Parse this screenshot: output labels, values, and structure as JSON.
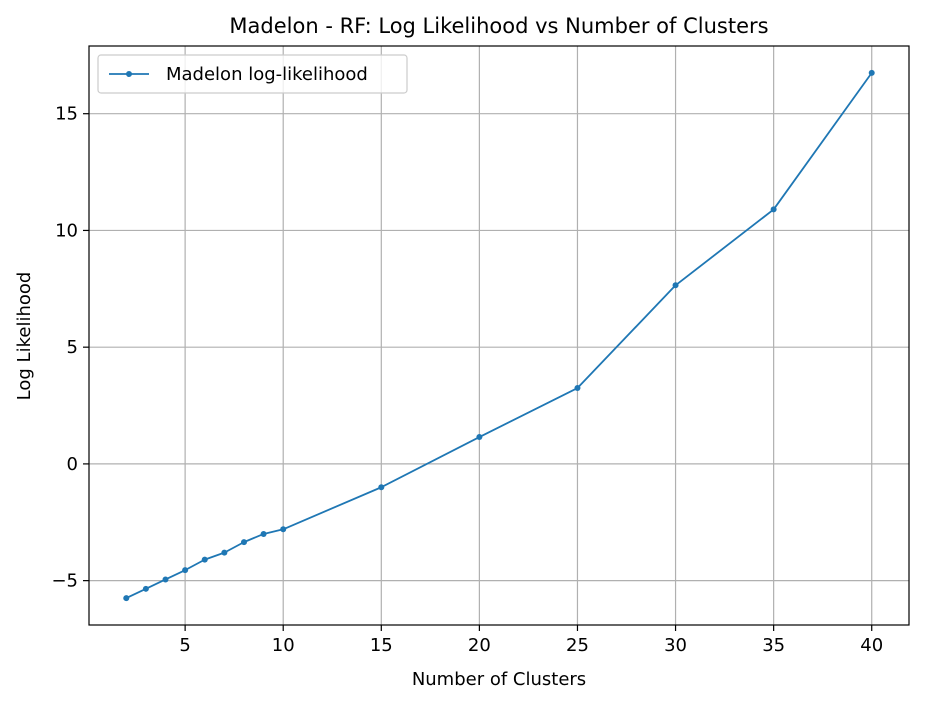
{
  "chart_data": {
    "type": "line",
    "title": "Madelon - RF: Log Likelihood vs Number of Clusters",
    "xlabel": "Number of Clusters",
    "ylabel": "Log Likelihood",
    "xlim": [
      0.1,
      41.9
    ],
    "ylim": [
      -6.9,
      17.9
    ],
    "xticks": [
      5,
      10,
      15,
      20,
      25,
      30,
      35,
      40
    ],
    "yticks": [
      -5,
      0,
      5,
      10,
      15
    ],
    "ytick_labels": [
      "−5",
      "0",
      "5",
      "10",
      "15"
    ],
    "grid": true,
    "legend_position": "top-left",
    "series": [
      {
        "name": "Madelon log-likelihood",
        "color": "#1f77b4",
        "marker": "circle",
        "x": [
          2,
          3,
          4,
          5,
          6,
          7,
          8,
          9,
          10,
          15,
          20,
          25,
          30,
          35,
          40
        ],
        "y": [
          -5.75,
          -5.35,
          -4.95,
          -4.55,
          -4.1,
          -3.8,
          -3.35,
          -3.0,
          -2.8,
          -1.0,
          1.15,
          3.25,
          7.65,
          10.9,
          16.75
        ]
      }
    ]
  }
}
